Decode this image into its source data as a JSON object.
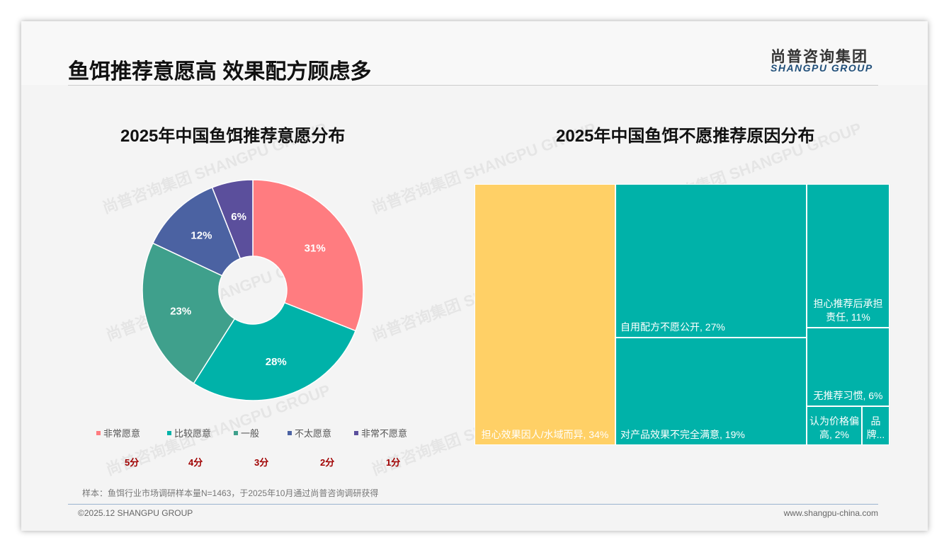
{
  "header": {
    "title": "鱼饵推荐意愿高 效果配方顾虑多",
    "logo_cn": "尚普咨询集团",
    "logo_en": "SHANGPU GROUP"
  },
  "watermark": "尚普咨询集团 SHANGPU GROUP",
  "chart_data": [
    {
      "type": "pie",
      "title": "2025年中国鱼饵推荐意愿分布",
      "categories": [
        "非常愿意",
        "比较愿意",
        "一般",
        "不太愿意",
        "非常不愿意"
      ],
      "values": [
        31,
        28,
        23,
        12,
        6
      ],
      "labels": [
        "31%",
        "28%",
        "23%",
        "12%",
        "6%"
      ],
      "scores": [
        "5分",
        "4分",
        "3分",
        "2分",
        "1分"
      ],
      "colors": [
        "#FF7C80",
        "#00B2A9",
        "#3FA08C",
        "#4B62A2",
        "#5B4F9C"
      ]
    },
    {
      "type": "treemap",
      "title": "2025年中国鱼饵不愿推荐原因分布",
      "categories": [
        "担心效果因人/水域而异",
        "自用配方不愿公开",
        "对产品效果不完全满意",
        "担心推荐后承担责任",
        "无推荐习惯",
        "认为价格偏高",
        "品牌..."
      ],
      "values": [
        34,
        27,
        19,
        11,
        6,
        2,
        1
      ],
      "labels": [
        "担心效果因人/水域而异, 34%",
        "自用配方不愿公开, 27%",
        "对产品效果不完全满意, 19%",
        "担心推荐后承担责任, 11%",
        "无推荐习惯, 6%",
        "认为价格偏高, 2%",
        "品牌..."
      ],
      "colors": [
        "#FFD066",
        "#00B2A9"
      ]
    }
  ],
  "footer": {
    "note": "样本：鱼饵行业市场调研样本量N=1463，于2025年10月通过尚普咨询调研获得",
    "copyright": "©2025.12 SHANGPU GROUP",
    "website": "www.shangpu-china.com"
  }
}
